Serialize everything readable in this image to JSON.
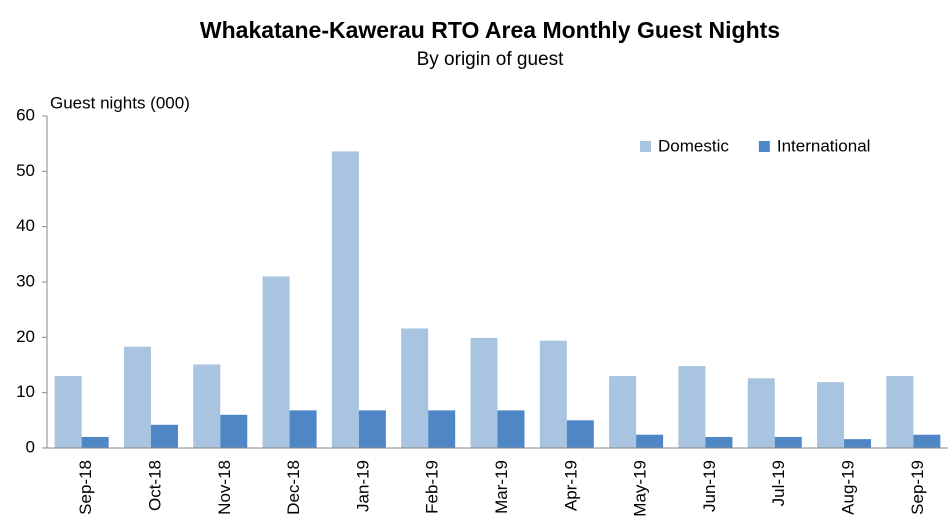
{
  "chart_data": {
    "type": "bar",
    "title": "Whakatane-Kawerau RTO Area Monthly Guest Nights",
    "subtitle": "By origin of guest",
    "y_label": "Guest nights (000)",
    "categories": [
      "Sep-18",
      "Oct-18",
      "Nov-18",
      "Dec-18",
      "Jan-19",
      "Feb-19",
      "Mar-19",
      "Apr-19",
      "May-19",
      "Jun-19",
      "Jul-19",
      "Aug-19",
      "Sep-19"
    ],
    "series": [
      {
        "name": "Domestic",
        "color": "#a9c4e0",
        "values": [
          13,
          18.3,
          15.1,
          31,
          53.6,
          21.6,
          19.9,
          19.4,
          13,
          14.8,
          12.6,
          11.9,
          13
        ]
      },
      {
        "name": "International",
        "color": "#4f86c6",
        "values": [
          2,
          4.2,
          6.0,
          6.8,
          6.8,
          6.8,
          6.8,
          5.0,
          2.4,
          2.0,
          2.0,
          1.6,
          2.4
        ]
      }
    ],
    "ylim": [
      0,
      60
    ],
    "yticks": [
      0,
      10,
      20,
      30,
      40,
      50,
      60
    ],
    "grid": false,
    "legend": "top-right"
  }
}
